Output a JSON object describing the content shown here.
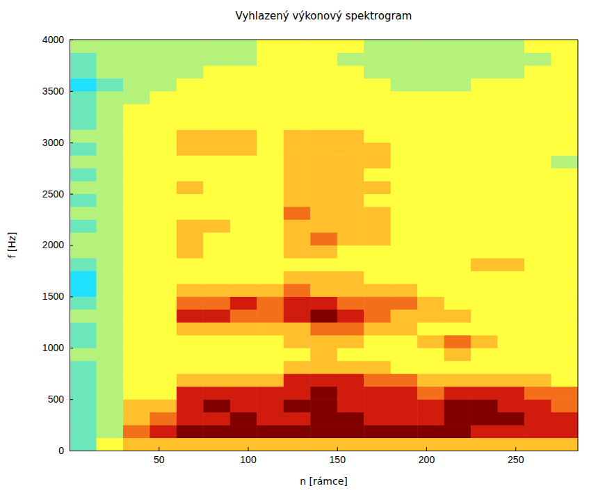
{
  "chart_data": {
    "type": "heatmap",
    "title": "Vyhlazený výkonový spektrogram",
    "xlabel": "n [rámce]",
    "ylabel": "f [Hz]",
    "xlim": [
      0,
      285
    ],
    "ylim": [
      0,
      4000
    ],
    "xticks": [
      50,
      100,
      150,
      200,
      250
    ],
    "yticks": [
      0,
      500,
      1000,
      1500,
      2000,
      2500,
      3000,
      3500,
      4000
    ],
    "zlim": [
      0,
      10
    ],
    "x_bins": [
      0,
      15,
      30,
      45,
      60,
      75,
      90,
      105,
      120,
      135,
      150,
      165,
      180,
      195,
      210,
      225,
      240,
      255,
      270,
      285
    ],
    "y_bins": [
      0,
      125,
      250,
      375,
      500,
      625,
      750,
      875,
      1000,
      1125,
      1250,
      1375,
      1500,
      1625,
      1750,
      1875,
      2000,
      2125,
      2250,
      2375,
      2500,
      2625,
      2750,
      2875,
      3000,
      3125,
      3250,
      3375,
      3500,
      3625,
      3750,
      3875,
      4000
    ],
    "cells": [
      [
        4,
        6,
        7,
        7,
        7,
        7,
        7,
        7,
        7,
        7,
        7,
        7,
        7,
        7,
        7,
        7,
        7,
        7,
        7
      ],
      [
        4,
        5,
        8,
        9,
        10,
        10,
        10,
        10,
        10,
        10,
        10,
        10,
        10,
        10,
        10,
        9,
        9,
        9,
        9
      ],
      [
        4,
        5,
        7,
        8,
        9,
        9,
        10,
        9,
        9,
        10,
        10,
        9,
        9,
        9,
        10,
        10,
        10,
        9,
        9
      ],
      [
        4,
        5,
        7,
        7,
        9,
        10,
        9,
        9,
        10,
        10,
        9,
        9,
        9,
        9,
        10,
        10,
        9,
        9,
        8
      ],
      [
        4,
        5,
        6,
        6,
        9,
        9,
        9,
        9,
        9,
        10,
        9,
        9,
        9,
        8,
        9,
        9,
        9,
        8,
        8
      ],
      [
        4,
        5,
        6,
        6,
        7,
        7,
        7,
        7,
        9,
        9,
        9,
        8,
        8,
        7,
        7,
        7,
        7,
        7,
        6
      ],
      [
        4,
        5,
        6,
        6,
        6,
        6,
        6,
        6,
        7,
        7,
        7,
        7,
        6,
        6,
        6,
        6,
        6,
        6,
        6
      ],
      [
        5,
        5,
        6,
        6,
        6,
        6,
        6,
        6,
        6,
        7,
        6,
        6,
        6,
        6,
        7,
        6,
        6,
        6,
        6
      ],
      [
        4,
        5,
        6,
        6,
        6,
        6,
        6,
        6,
        7,
        7,
        7,
        6,
        6,
        7,
        8,
        7,
        6,
        6,
        6
      ],
      [
        4,
        5,
        6,
        6,
        7,
        7,
        7,
        7,
        7,
        8,
        8,
        7,
        7,
        6,
        6,
        6,
        6,
        6,
        6
      ],
      [
        5,
        5,
        6,
        6,
        9,
        9,
        8,
        8,
        9,
        10,
        9,
        8,
        7,
        7,
        7,
        6,
        6,
        6,
        6
      ],
      [
        4,
        5,
        6,
        6,
        8,
        8,
        9,
        8,
        9,
        9,
        8,
        8,
        8,
        7,
        6,
        6,
        6,
        6,
        6
      ],
      [
        3,
        5,
        6,
        6,
        7,
        7,
        7,
        7,
        8,
        7,
        7,
        7,
        7,
        6,
        6,
        6,
        6,
        6,
        6
      ],
      [
        3,
        5,
        6,
        6,
        6,
        6,
        6,
        6,
        7,
        7,
        7,
        6,
        6,
        6,
        6,
        6,
        6,
        6,
        6
      ],
      [
        4,
        5,
        6,
        6,
        6,
        6,
        6,
        6,
        6,
        6,
        6,
        6,
        6,
        6,
        6,
        7,
        7,
        6,
        6
      ],
      [
        5,
        5,
        6,
        6,
        7,
        6,
        6,
        6,
        7,
        7,
        6,
        6,
        6,
        6,
        6,
        6,
        6,
        6,
        6
      ],
      [
        5,
        5,
        6,
        6,
        7,
        6,
        6,
        6,
        7,
        8,
        7,
        7,
        6,
        6,
        6,
        6,
        6,
        6,
        6
      ],
      [
        4,
        5,
        6,
        6,
        7,
        7,
        6,
        6,
        7,
        7,
        7,
        7,
        6,
        6,
        6,
        6,
        6,
        6,
        6
      ],
      [
        5,
        5,
        6,
        6,
        6,
        6,
        6,
        6,
        8,
        7,
        7,
        7,
        6,
        6,
        6,
        6,
        6,
        6,
        6
      ],
      [
        4,
        5,
        6,
        6,
        6,
        6,
        6,
        6,
        7,
        7,
        7,
        6,
        6,
        6,
        6,
        6,
        6,
        6,
        6
      ],
      [
        5,
        5,
        6,
        6,
        7,
        6,
        6,
        6,
        7,
        7,
        7,
        7,
        6,
        6,
        6,
        6,
        6,
        6,
        6
      ],
      [
        4,
        5,
        6,
        6,
        6,
        6,
        6,
        6,
        7,
        7,
        7,
        6,
        6,
        6,
        6,
        6,
        6,
        6,
        6
      ],
      [
        5,
        5,
        6,
        6,
        6,
        6,
        6,
        6,
        7,
        7,
        7,
        7,
        6,
        6,
        6,
        6,
        6,
        6,
        5
      ],
      [
        4,
        5,
        6,
        6,
        7,
        7,
        7,
        6,
        7,
        7,
        7,
        7,
        6,
        6,
        6,
        6,
        6,
        6,
        6
      ],
      [
        5,
        5,
        6,
        6,
        7,
        7,
        7,
        6,
        7,
        7,
        7,
        6,
        6,
        6,
        6,
        6,
        6,
        6,
        6
      ],
      [
        4,
        5,
        6,
        6,
        6,
        6,
        6,
        6,
        6,
        6,
        6,
        6,
        6,
        6,
        6,
        6,
        6,
        6,
        6
      ],
      [
        4,
        5,
        6,
        6,
        6,
        6,
        6,
        6,
        6,
        6,
        6,
        6,
        6,
        6,
        6,
        6,
        6,
        6,
        6
      ],
      [
        4,
        5,
        5,
        6,
        6,
        6,
        6,
        6,
        6,
        6,
        6,
        6,
        6,
        6,
        6,
        6,
        6,
        6,
        6
      ],
      [
        3,
        4,
        5,
        5,
        6,
        6,
        6,
        6,
        6,
        6,
        6,
        6,
        5,
        5,
        5,
        6,
        6,
        6,
        6
      ],
      [
        4,
        5,
        5,
        5,
        5,
        6,
        6,
        6,
        6,
        6,
        6,
        5,
        5,
        5,
        5,
        5,
        5,
        6,
        6
      ],
      [
        4,
        5,
        5,
        5,
        5,
        5,
        5,
        6,
        6,
        6,
        5,
        5,
        5,
        5,
        5,
        5,
        5,
        5,
        6
      ],
      [
        5,
        5,
        5,
        5,
        5,
        5,
        5,
        6,
        6,
        6,
        6,
        5,
        5,
        5,
        5,
        5,
        5,
        6,
        6
      ]
    ]
  }
}
